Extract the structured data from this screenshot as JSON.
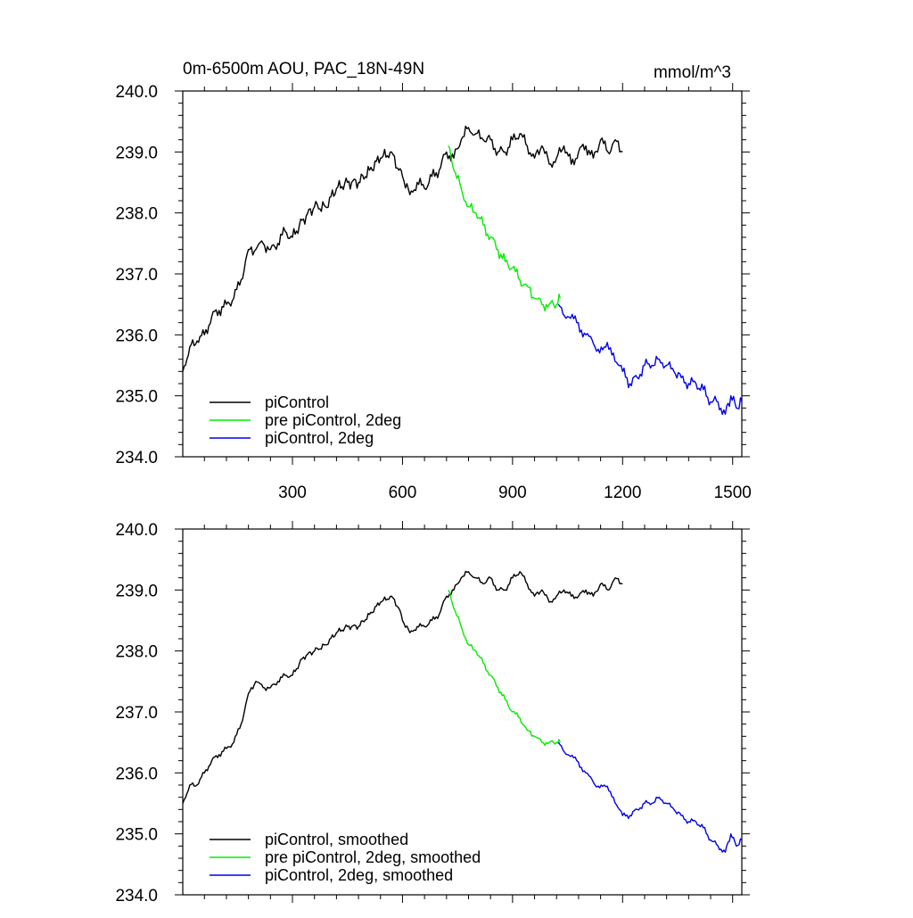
{
  "page": {
    "title_left": "0m-6500m AOU, PAC_18N-49N",
    "title_right": "mmol/m^3"
  },
  "colors": {
    "piControl": "#000000",
    "pre_2deg": "#00ee00",
    "twodeg": "#0000ee"
  },
  "chart_data": [
    {
      "type": "line",
      "panel": "top",
      "xlim": [
        1,
        1525
      ],
      "ylim": [
        234.0,
        240.0
      ],
      "xticks": [
        300,
        600,
        900,
        1200,
        1500
      ],
      "xticklabels": [
        "300",
        "600",
        "900",
        "1200",
        "1500"
      ],
      "yticks": [
        234.0,
        235.0,
        236.0,
        237.0,
        238.0,
        239.0,
        240.0
      ],
      "yticklabels": [
        "234.0",
        "235.0",
        "236.0",
        "237.0",
        "238.0",
        "239.0",
        "240.0"
      ],
      "legend_position": "lower-left",
      "series": [
        {
          "name": "piControl",
          "color_key": "piControl",
          "x": [
            1,
            20,
            40,
            60,
            80,
            100,
            120,
            140,
            160,
            180,
            200,
            220,
            240,
            260,
            280,
            300,
            330,
            360,
            390,
            420,
            450,
            480,
            510,
            540,
            570,
            590,
            600,
            620,
            640,
            660,
            680,
            700,
            720,
            740,
            760,
            780,
            800,
            820,
            840,
            860,
            880,
            900,
            920,
            940,
            960,
            980,
            1000,
            1020,
            1040,
            1060,
            1080,
            1100,
            1120,
            1140,
            1160,
            1180,
            1200
          ],
          "y": [
            235.4,
            235.8,
            235.9,
            236.0,
            236.3,
            236.4,
            236.5,
            236.6,
            236.9,
            237.4,
            237.4,
            237.5,
            237.4,
            237.5,
            237.7,
            237.6,
            237.9,
            238.1,
            238.1,
            238.4,
            238.5,
            238.5,
            238.7,
            238.9,
            239.0,
            238.7,
            238.6,
            238.3,
            238.5,
            238.4,
            238.6,
            238.7,
            239.0,
            238.9,
            239.2,
            239.4,
            239.3,
            239.2,
            239.2,
            239.0,
            239.0,
            239.2,
            239.3,
            239.1,
            238.9,
            239.1,
            238.8,
            238.9,
            239.1,
            238.8,
            239.0,
            239.1,
            238.9,
            239.2,
            239.0,
            239.2,
            239.0
          ]
        },
        {
          "name": "pre piControl, 2deg",
          "color_key": "pre_2deg",
          "x": [
            725,
            740,
            760,
            780,
            800,
            820,
            840,
            860,
            880,
            900,
            920,
            940,
            960,
            980,
            1000,
            1020,
            1030
          ],
          "y": [
            239.1,
            238.7,
            238.4,
            238.1,
            238.0,
            237.8,
            237.6,
            237.4,
            237.2,
            237.1,
            236.9,
            236.8,
            236.6,
            236.5,
            236.5,
            236.5,
            236.6
          ]
        },
        {
          "name": "piControl, 2deg",
          "color_key": "twodeg",
          "x": [
            1025,
            1050,
            1075,
            1100,
            1125,
            1150,
            1175,
            1200,
            1220,
            1240,
            1260,
            1280,
            1300,
            1320,
            1340,
            1360,
            1380,
            1400,
            1420,
            1440,
            1460,
            1480,
            1495,
            1510,
            1525
          ],
          "y": [
            236.5,
            236.3,
            236.2,
            236.0,
            235.8,
            235.8,
            235.7,
            235.4,
            235.2,
            235.3,
            235.5,
            235.5,
            235.6,
            235.5,
            235.4,
            235.3,
            235.2,
            235.2,
            235.1,
            234.9,
            234.9,
            234.7,
            235.0,
            234.8,
            234.9
          ]
        }
      ]
    },
    {
      "type": "line",
      "panel": "bottom",
      "xlim": [
        1,
        1525
      ],
      "ylim": [
        234.0,
        240.0
      ],
      "xticks": [
        300,
        600,
        900,
        1200,
        1500
      ],
      "yticks": [
        234.0,
        235.0,
        236.0,
        237.0,
        238.0,
        239.0,
        240.0
      ],
      "yticklabels": [
        "234.0",
        "235.0",
        "236.0",
        "237.0",
        "238.0",
        "239.0",
        "240.0"
      ],
      "legend_position": "lower-left",
      "series": [
        {
          "name": "piControl, smoothed",
          "color_key": "piControl",
          "x": [
            1,
            20,
            40,
            60,
            80,
            100,
            120,
            140,
            160,
            180,
            200,
            220,
            240,
            260,
            280,
            300,
            330,
            360,
            390,
            420,
            450,
            480,
            510,
            540,
            570,
            590,
            600,
            620,
            640,
            660,
            680,
            700,
            720,
            740,
            760,
            780,
            800,
            820,
            840,
            860,
            880,
            900,
            920,
            940,
            960,
            980,
            1000,
            1020,
            1040,
            1060,
            1080,
            1100,
            1120,
            1140,
            1160,
            1180,
            1200
          ],
          "y": [
            235.5,
            235.8,
            235.8,
            236.0,
            236.2,
            236.3,
            236.4,
            236.5,
            236.8,
            237.3,
            237.5,
            237.4,
            237.4,
            237.5,
            237.6,
            237.6,
            237.9,
            238.0,
            238.1,
            238.3,
            238.4,
            238.4,
            238.6,
            238.8,
            238.9,
            238.7,
            238.5,
            238.3,
            238.4,
            238.4,
            238.5,
            238.6,
            238.9,
            239.0,
            239.2,
            239.3,
            239.2,
            239.1,
            239.2,
            239.0,
            239.0,
            239.2,
            239.3,
            239.1,
            238.9,
            239.0,
            238.8,
            238.9,
            239.0,
            238.9,
            238.9,
            239.0,
            238.9,
            239.1,
            239.0,
            239.2,
            239.1
          ]
        },
        {
          "name": "pre piControl, 2deg, smoothed",
          "color_key": "pre_2deg",
          "x": [
            725,
            740,
            760,
            780,
            800,
            820,
            840,
            860,
            880,
            900,
            920,
            940,
            960,
            980,
            1000,
            1020,
            1030
          ],
          "y": [
            239.0,
            238.7,
            238.4,
            238.1,
            238.0,
            237.8,
            237.6,
            237.4,
            237.2,
            237.0,
            236.9,
            236.7,
            236.6,
            236.5,
            236.5,
            236.5,
            236.5
          ]
        },
        {
          "name": "piControl, 2deg, smoothed",
          "color_key": "twodeg",
          "x": [
            1025,
            1050,
            1075,
            1100,
            1125,
            1150,
            1175,
            1200,
            1220,
            1240,
            1260,
            1280,
            1300,
            1320,
            1340,
            1360,
            1380,
            1400,
            1420,
            1440,
            1460,
            1480,
            1495,
            1510,
            1525
          ],
          "y": [
            236.5,
            236.3,
            236.2,
            236.0,
            235.8,
            235.8,
            235.6,
            235.3,
            235.3,
            235.4,
            235.5,
            235.5,
            235.6,
            235.5,
            235.4,
            235.3,
            235.2,
            235.2,
            235.1,
            234.9,
            234.8,
            234.7,
            235.0,
            234.8,
            234.9
          ]
        }
      ]
    }
  ]
}
